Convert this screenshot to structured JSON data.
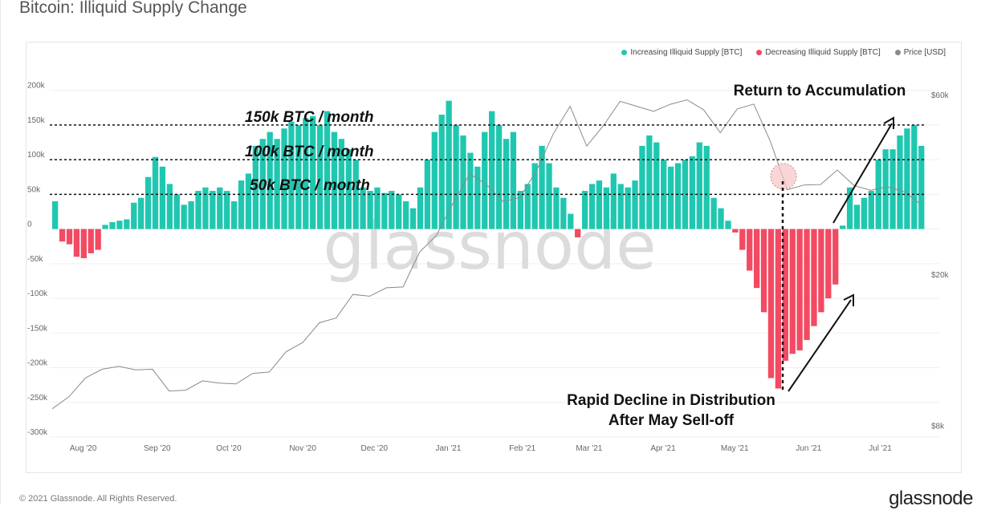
{
  "title": "Bitcoin: Illiquid Supply Change",
  "footer": "© 2021 Glassnode. All Rights Reserved.",
  "logo": "glassnode",
  "watermark": "glassnode",
  "colors": {
    "increase": "#20c7b0",
    "decrease": "#f24a63",
    "price": "#8a8a8a"
  },
  "chart_data": {
    "type": "bar",
    "title": "Bitcoin: Illiquid Supply Change",
    "legend": [
      {
        "label": "Increasing Illiquid Supply [BTC]",
        "color": "#20c7b0"
      },
      {
        "label": "Decreasing Illiquid Supply [BTC]",
        "color": "#f24a63"
      },
      {
        "label": "Price [USD]",
        "color": "#8a8a8a"
      }
    ],
    "legend_position": "top-right",
    "y_left": {
      "ylim": [
        -300000,
        200000
      ],
      "ticks": [
        "200k",
        "150k",
        "100k",
        "50k",
        "0",
        "-50k",
        "-100k",
        "-150k",
        "-200k",
        "-250k",
        "-300k"
      ],
      "tick_values": [
        200000,
        150000,
        100000,
        50000,
        0,
        -50000,
        -100000,
        -150000,
        -200000,
        -250000,
        -300000
      ]
    },
    "y_right": {
      "scale": "log",
      "ticks": [
        "$60k",
        "$20k",
        "$8k"
      ],
      "tick_values": [
        60000,
        20000,
        8000
      ]
    },
    "x_ticks": [
      "Aug '20",
      "Sep '20",
      "Oct '20",
      "Nov '20",
      "Dec '20",
      "Jan '21",
      "Feb '21",
      "Mar '21",
      "Apr '21",
      "May '21",
      "Jun '21",
      "Jul '21"
    ],
    "start_date": "2020-07-19",
    "interval_days": 3,
    "series_supply_change_k_btc": [
      40,
      -18,
      -22,
      -40,
      -42,
      -35,
      -30,
      6,
      10,
      12,
      14,
      38,
      45,
      75,
      104,
      90,
      65,
      50,
      35,
      40,
      55,
      60,
      55,
      60,
      55,
      40,
      70,
      80,
      120,
      130,
      140,
      130,
      145,
      155,
      150,
      160,
      163,
      150,
      170,
      140,
      130,
      115,
      100,
      60,
      55,
      60,
      52,
      55,
      50,
      40,
      30,
      60,
      100,
      140,
      165,
      185,
      150,
      135,
      110,
      90,
      140,
      170,
      150,
      130,
      140,
      55,
      65,
      95,
      120,
      95,
      60,
      45,
      22,
      -12,
      55,
      65,
      70,
      60,
      80,
      65,
      60,
      70,
      120,
      135,
      125,
      100,
      90,
      95,
      100,
      105,
      125,
      120,
      45,
      30,
      12,
      -5,
      -30,
      -60,
      -85,
      -120,
      -215,
      -230,
      -190,
      -180,
      -175,
      -160,
      -140,
      -120,
      -100,
      -80,
      5,
      60,
      35,
      45,
      55,
      100,
      115,
      115,
      135,
      145,
      150,
      120
    ],
    "price_interval_days": 7,
    "series_price_usd": [
      9200,
      9900,
      11100,
      11700,
      11900,
      11650,
      11700,
      10250,
      10300,
      10900,
      10750,
      10700,
      11400,
      11500,
      13000,
      13750,
      15500,
      15950,
      18400,
      18200,
      19150,
      19250,
      23800,
      26300,
      32000,
      38200,
      35800,
      32300,
      33100,
      39000,
      48700,
      57500,
      45200,
      51200,
      59300,
      57500,
      55800,
      58200,
      59800,
      56300,
      49000,
      56600,
      58300,
      46400,
      34700,
      35700,
      35800,
      39100,
      35600,
      34600,
      35300,
      34300,
      31800
    ],
    "reference_lines": [
      {
        "value": 150000,
        "label": "150k BTC / month"
      },
      {
        "value": 100000,
        "label": "100k BTC / month"
      },
      {
        "value": 50000,
        "label": "50k BTC / month"
      }
    ],
    "annotations": {
      "return": "Return to Accumulation",
      "decline_1": "Rapid Decline in Distribution",
      "decline_2": "After May Sell-off"
    }
  }
}
